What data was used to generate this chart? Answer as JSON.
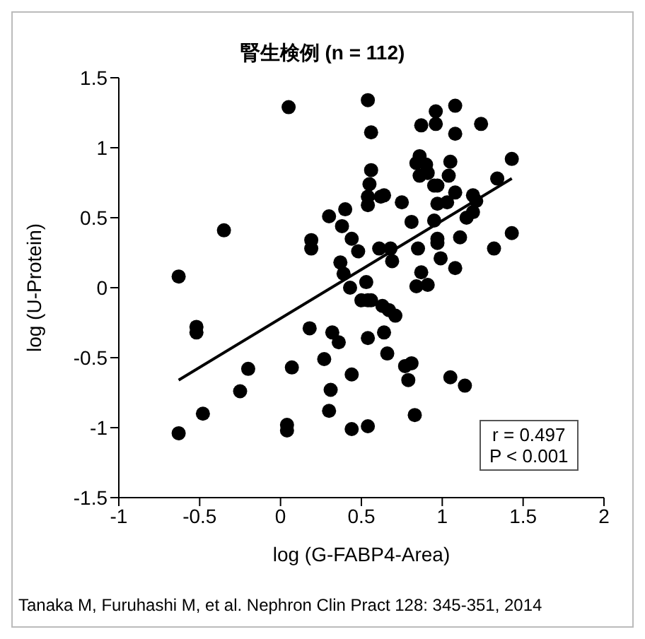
{
  "chart_data": {
    "type": "scatter",
    "title": "腎生検例 (n = 112)",
    "xlabel": "log (G-FABP4-Area)",
    "ylabel": "log (U-Protein)",
    "xlim": [
      -1,
      2
    ],
    "xticks": [
      -1,
      -0.5,
      0,
      0.5,
      1,
      1.5,
      2
    ],
    "ylim": [
      -1.5,
      1.5
    ],
    "yticks": [
      -1.5,
      -1,
      -0.5,
      0,
      0.5,
      1,
      1.5
    ],
    "marker": "circle",
    "series": [
      {
        "color": "#000000",
        "x": [
          0.05,
          -0.35,
          -0.63,
          0.19,
          0.19,
          0.3,
          0.4,
          0.38,
          0.44,
          0.48,
          0.37,
          0.39,
          0.43,
          0.53,
          0.54,
          0.56,
          0.56,
          0.55,
          0.54,
          0.54,
          0.5,
          0.62,
          0.64,
          0.75,
          0.81,
          0.61,
          0.68,
          0.69,
          0.85,
          0.87,
          0.84,
          0.91,
          0.99,
          1.08,
          0.97,
          0.97,
          1.11,
          0.95,
          1.32,
          1.43,
          1.43,
          1.34,
          1.19,
          1.21,
          1.19,
          1.15,
          1.08,
          0.97,
          1.03,
          0.95,
          0.97,
          1.04,
          1.05,
          0.86,
          0.84,
          0.9,
          0.91,
          0.86,
          0.87,
          0.96,
          0.96,
          1.08,
          1.08,
          1.24,
          -0.63,
          -0.48,
          -0.52,
          -0.52,
          -0.25,
          -0.2,
          0.04,
          0.04,
          0.07,
          0.18,
          0.27,
          0.31,
          0.3,
          0.32,
          0.36,
          0.54,
          0.44,
          0.44,
          0.54,
          0.54,
          0.56,
          0.63,
          0.67,
          0.71,
          0.64,
          0.66,
          0.77,
          0.81,
          0.79,
          1.05,
          1.14,
          0.83
        ],
        "values": [
          1.29,
          0.41,
          0.08,
          0.34,
          0.28,
          0.51,
          0.56,
          0.44,
          0.35,
          0.26,
          0.18,
          0.1,
          0,
          0.04,
          1.34,
          1.11,
          0.84,
          0.74,
          0.65,
          0.59,
          -0.09,
          0.65,
          0.66,
          0.61,
          0.47,
          0.28,
          0.28,
          0.19,
          0.28,
          0.11,
          0.01,
          0.02,
          0.21,
          0.14,
          0.35,
          0.32,
          0.36,
          0.48,
          0.28,
          0.39,
          0.92,
          0.78,
          0.66,
          0.62,
          0.54,
          0.5,
          0.68,
          0.6,
          0.61,
          0.73,
          0.73,
          0.8,
          0.9,
          0.94,
          0.89,
          0.88,
          0.82,
          0.8,
          1.16,
          1.26,
          1.17,
          1.3,
          1.1,
          1.17,
          -1.04,
          -0.9,
          -0.28,
          -0.32,
          -0.74,
          -0.58,
          -0.98,
          -1.02,
          -0.57,
          -0.29,
          -0.51,
          -0.73,
          -0.88,
          -0.32,
          -0.39,
          -0.09,
          -0.62,
          -1.01,
          -0.36,
          -0.99,
          -0.09,
          -0.13,
          -0.16,
          -0.2,
          -0.32,
          -0.47,
          -0.56,
          -0.54,
          -0.66,
          -0.64,
          -0.7,
          -0.91
        ]
      },
      {
        "type": "line",
        "color": "#000000",
        "x": [
          -0.63,
          1.43
        ],
        "values": [
          -0.66,
          0.78
        ],
        "marker": "none"
      }
    ],
    "annotations": [
      "r = 0.497",
      "P < 0.001",
      "Tanaka M, Furuhashi M, et al. Nephron Clin Pract 128: 345-351, 2014"
    ]
  }
}
